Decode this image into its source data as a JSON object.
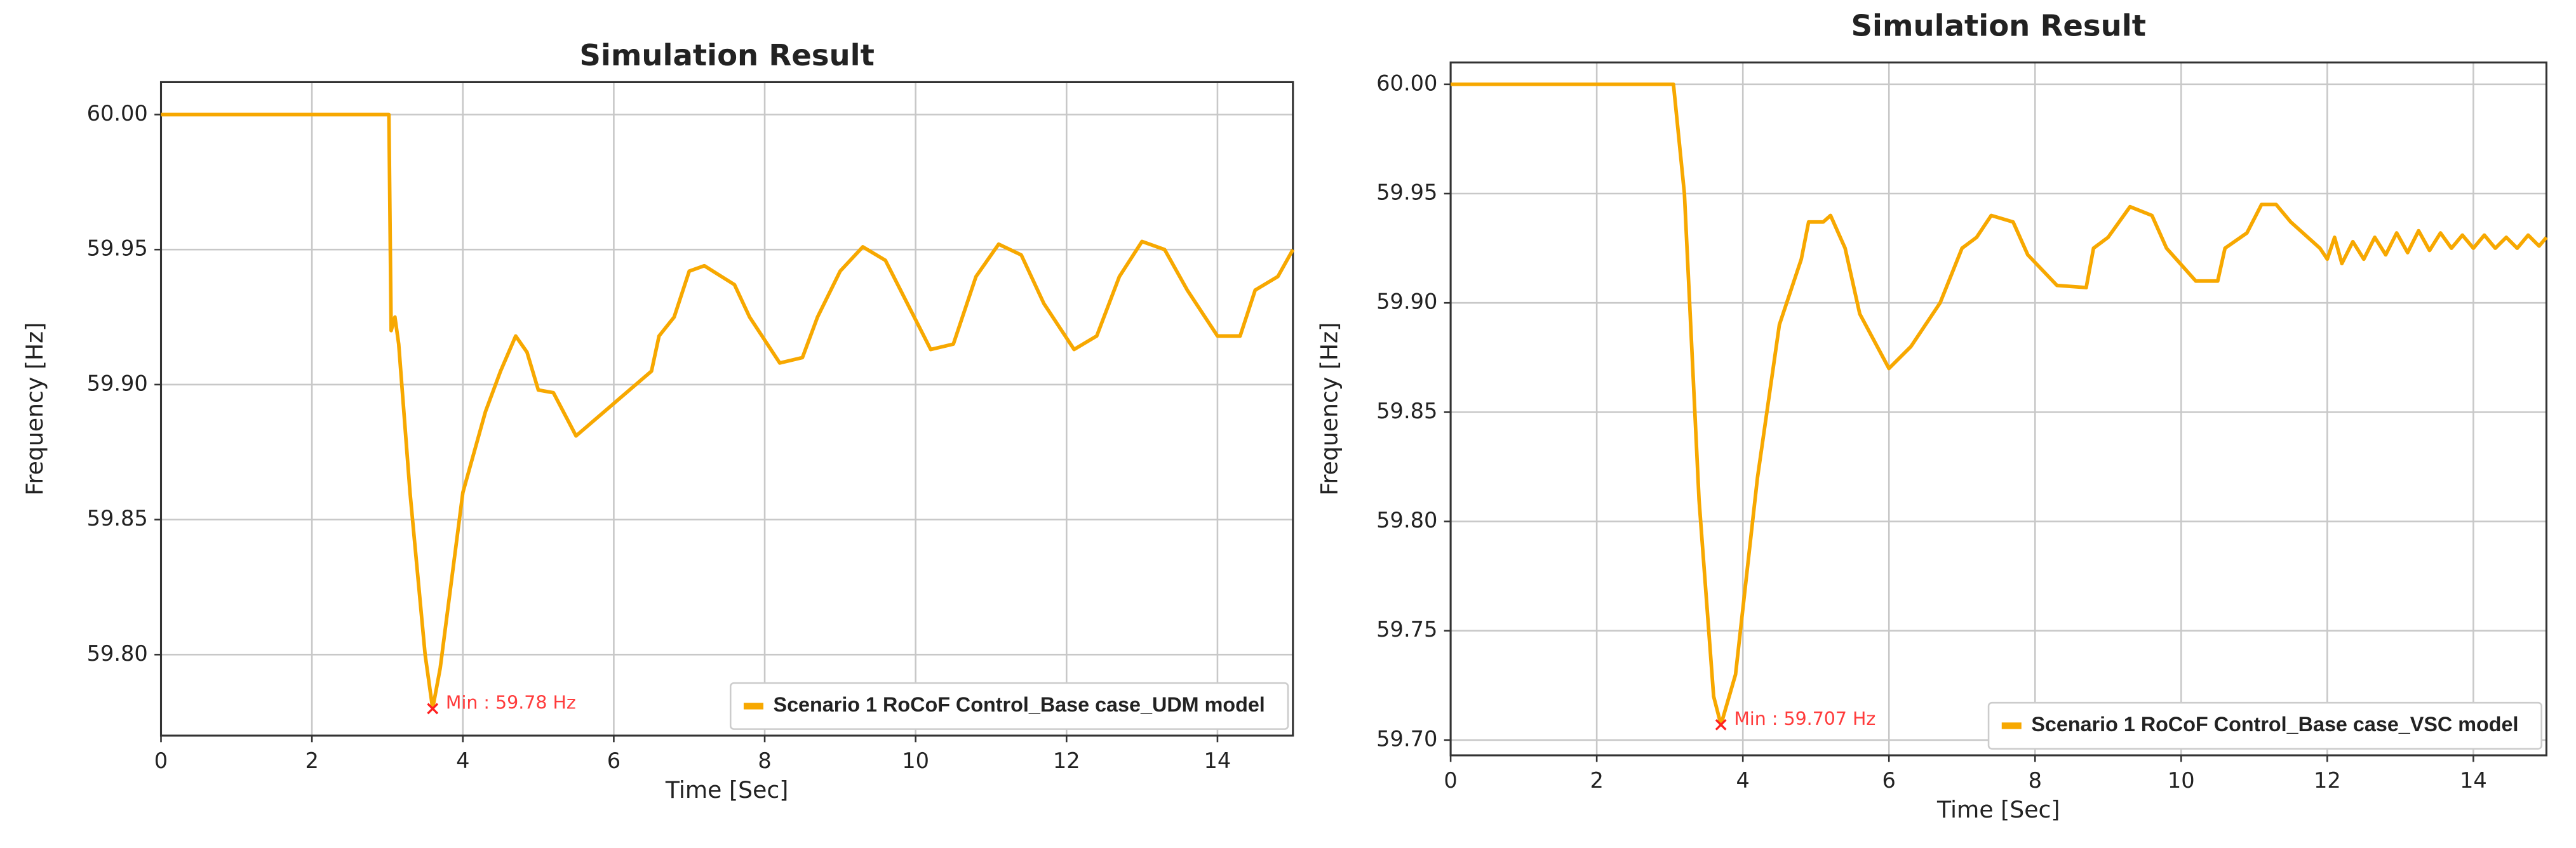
{
  "chart_data": [
    {
      "type": "line",
      "title": "Simulation Result",
      "xlabel": "Time [Sec]",
      "ylabel": "Frequency [Hz]",
      "x": [
        0,
        1,
        2,
        3,
        3.02,
        3.05,
        3.1,
        3.15,
        3.3,
        3.5,
        3.6,
        3.7,
        4.0,
        4.3,
        4.5,
        4.7,
        4.85,
        5.0,
        5.2,
        5.5,
        6.0,
        6.5,
        6.6,
        6.8,
        7.0,
        7.2,
        7.6,
        7.8,
        8.2,
        8.5,
        8.7,
        9.0,
        9.3,
        9.6,
        9.8,
        10.2,
        10.5,
        10.8,
        11.1,
        11.4,
        11.7,
        12.1,
        12.4,
        12.7,
        13.0,
        13.3,
        13.6,
        14.0,
        14.3,
        14.5,
        14.8,
        15.0
      ],
      "series": [
        {
          "name": "Scenario 1 RoCoF Control_Base case_UDM model",
          "color": "#f7a800",
          "values": [
            60.0,
            60.0,
            60.0,
            60.0,
            60.0,
            59.92,
            59.925,
            59.915,
            59.86,
            59.8,
            59.78,
            59.795,
            59.86,
            59.89,
            59.905,
            59.918,
            59.912,
            59.898,
            59.897,
            59.881,
            59.893,
            59.905,
            59.918,
            59.925,
            59.942,
            59.944,
            59.937,
            59.925,
            59.908,
            59.91,
            59.925,
            59.942,
            59.951,
            59.946,
            59.935,
            59.913,
            59.915,
            59.94,
            59.952,
            59.948,
            59.93,
            59.913,
            59.918,
            59.94,
            59.953,
            59.95,
            59.935,
            59.918,
            59.918,
            59.935,
            59.94,
            59.95
          ]
        }
      ],
      "xlim": [
        0,
        15
      ],
      "ylim": [
        59.77,
        60.012
      ],
      "xticks": [
        0,
        2,
        4,
        6,
        8,
        10,
        12,
        14
      ],
      "yticks": [
        {
          "value": 59.8,
          "label": "59.80"
        },
        59.85,
        {
          "value": 59.9,
          "label": "59.90"
        },
        59.95,
        {
          "value": 60.0,
          "label": "60.00"
        }
      ],
      "grid": true,
      "legend": "lower right",
      "annotations": [
        {
          "text": "Min : 59.78 Hz",
          "x": 3.6,
          "y": 59.78
        }
      ]
    },
    {
      "type": "line",
      "title": "Simulation Result",
      "xlabel": "Time [Sec]",
      "ylabel": "Frequency [Hz]",
      "x": [
        0,
        1,
        2,
        3,
        3.05,
        3.2,
        3.4,
        3.6,
        3.7,
        3.9,
        4.2,
        4.5,
        4.8,
        4.9,
        5.1,
        5.2,
        5.4,
        5.6,
        6.0,
        6.3,
        6.7,
        7.0,
        7.2,
        7.4,
        7.7,
        7.9,
        8.3,
        8.7,
        8.8,
        9.0,
        9.3,
        9.6,
        9.8,
        10.2,
        10.5,
        10.6,
        10.9,
        11.1,
        11.3,
        11.5,
        11.8,
        11.9,
        12.0,
        12.1,
        12.2,
        12.35,
        12.5,
        12.65,
        12.8,
        12.95,
        13.1,
        13.25,
        13.4,
        13.55,
        13.7,
        13.85,
        14.0,
        14.15,
        14.3,
        14.45,
        14.6,
        14.75,
        14.9,
        15.0
      ],
      "series": [
        {
          "name": "Scenario 1 RoCoF Control_Base case_VSC model",
          "color": "#f7a800",
          "values": [
            60.0,
            60.0,
            60.0,
            60.0,
            60.0,
            59.95,
            59.81,
            59.72,
            59.707,
            59.73,
            59.82,
            59.89,
            59.92,
            59.937,
            59.937,
            59.94,
            59.925,
            59.895,
            59.87,
            59.88,
            59.9,
            59.925,
            59.93,
            59.94,
            59.937,
            59.922,
            59.908,
            59.907,
            59.925,
            59.93,
            59.944,
            59.94,
            59.925,
            59.91,
            59.91,
            59.925,
            59.932,
            59.945,
            59.945,
            59.937,
            59.928,
            59.925,
            59.92,
            59.93,
            59.918,
            59.928,
            59.92,
            59.93,
            59.922,
            59.932,
            59.923,
            59.933,
            59.924,
            59.932,
            59.925,
            59.931,
            59.925,
            59.931,
            59.925,
            59.93,
            59.925,
            59.931,
            59.926,
            59.93
          ]
        }
      ],
      "xlim": [
        0,
        15
      ],
      "ylim": [
        59.693,
        60.01
      ],
      "xticks": [
        0,
        2,
        4,
        6,
        8,
        10,
        12,
        14
      ],
      "yticks": [
        {
          "value": 59.7,
          "label": "59.70"
        },
        59.75,
        {
          "value": 59.8,
          "label": "59.80"
        },
        59.85,
        {
          "value": 59.9,
          "label": "59.90"
        },
        59.95,
        {
          "value": 60.0,
          "label": "60.00"
        }
      ],
      "grid": true,
      "legend": "lower right",
      "annotations": [
        {
          "text": "Min : 59.707 Hz",
          "x": 3.7,
          "y": 59.707
        }
      ]
    }
  ]
}
